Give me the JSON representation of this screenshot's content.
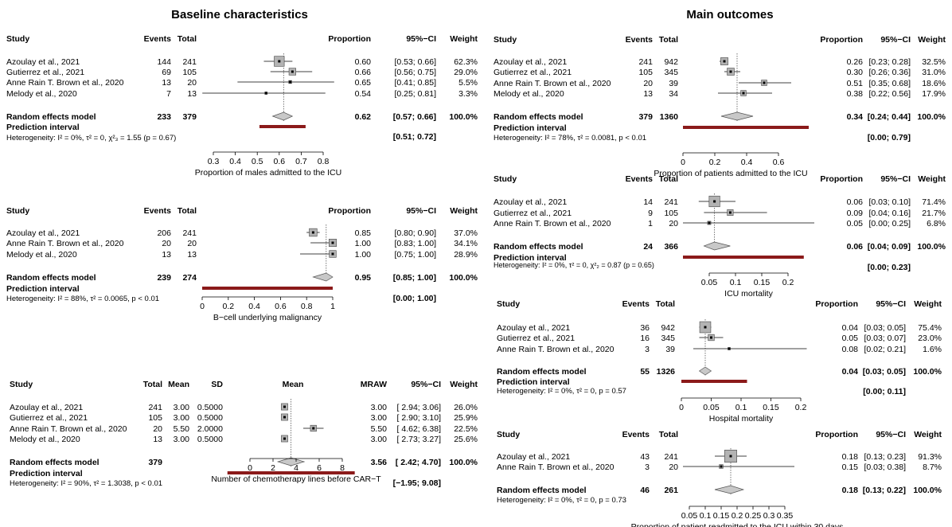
{
  "section_titles": {
    "left": "Baseline characteristics",
    "right": "Main outcomes"
  },
  "colors": {
    "prediction_bar": "#8b1a1a",
    "square_fill": "#b3b3b3",
    "diamond_fill": "#c8c8c8",
    "text": "#000000"
  },
  "chart_data": [
    {
      "type": "forest",
      "id": "males",
      "columns": [
        "Study",
        "Events",
        "Total",
        "Proportion",
        "95%−CI",
        "Weight"
      ],
      "studies": [
        {
          "study": "Azoulay et al., 2021",
          "events": "144",
          "total": "241",
          "est": 0.6,
          "lo": 0.53,
          "hi": 0.66,
          "est_text": "0.60",
          "ci_text": "[0.53; 0.66]",
          "weight": "62.3%",
          "w": 62.3
        },
        {
          "study": "Gutierrez et al., 2021",
          "events": "69",
          "total": "105",
          "est": 0.66,
          "lo": 0.56,
          "hi": 0.75,
          "est_text": "0.66",
          "ci_text": "[0.56; 0.75]",
          "weight": "29.0%",
          "w": 29.0
        },
        {
          "study": "Anne Rain T. Brown et al., 2020",
          "events": "13",
          "total": "20",
          "est": 0.65,
          "lo": 0.41,
          "hi": 0.85,
          "est_text": "0.65",
          "ci_text": "[0.41; 0.85]",
          "weight": "5.5%",
          "w": 5.5
        },
        {
          "study": "Melody et al., 2020",
          "events": "7",
          "total": "13",
          "est": 0.54,
          "lo": 0.25,
          "hi": 0.81,
          "est_text": "0.54",
          "ci_text": "[0.25; 0.81]",
          "weight": "3.3%",
          "w": 3.3
        }
      ],
      "random": {
        "label": "Random effects model",
        "events": "233",
        "total": "379",
        "est": 0.62,
        "lo": 0.57,
        "hi": 0.66,
        "est_text": "0.62",
        "ci_text": "[0.57; 0.66]",
        "weight": "100.0%"
      },
      "prediction": {
        "label": "Prediction interval",
        "lo": 0.51,
        "hi": 0.72,
        "ci_text": "[0.51; 0.72]"
      },
      "heterogeneity": "Heterogeneity: I² = 0%, τ² = 0, χ²₃ = 1.55 (p = 0.67)",
      "xlim": [
        0.3,
        0.8
      ],
      "ticks": [
        0.3,
        0.4,
        0.5,
        0.6,
        0.7,
        0.8
      ],
      "tick_labels": [
        "0.3",
        "0.4",
        "0.5",
        "0.6",
        "0.7",
        "0.8"
      ],
      "ref_line": 0.62,
      "xlabel": "Proportion of males admitted to the ICU"
    },
    {
      "type": "forest",
      "id": "bcell",
      "columns": [
        "Study",
        "Events",
        "Total",
        "Proportion",
        "95%−CI",
        "Weight"
      ],
      "studies": [
        {
          "study": "Azoulay et al., 2021",
          "events": "206",
          "total": "241",
          "est": 0.85,
          "lo": 0.8,
          "hi": 0.9,
          "est_text": "0.85",
          "ci_text": "[0.80; 0.90]",
          "weight": "37.0%",
          "w": 37.0
        },
        {
          "study": "Anne Rain T. Brown et al., 2020",
          "events": "20",
          "total": "20",
          "est": 1.0,
          "lo": 0.83,
          "hi": 1.0,
          "est_text": "1.00",
          "ci_text": "[0.83; 1.00]",
          "weight": "34.1%",
          "w": 34.1
        },
        {
          "study": "Melody et al., 2020",
          "events": "13",
          "total": "13",
          "est": 1.0,
          "lo": 0.75,
          "hi": 1.0,
          "est_text": "1.00",
          "ci_text": "[0.75; 1.00]",
          "weight": "28.9%",
          "w": 28.9
        }
      ],
      "random": {
        "label": "Random effects model",
        "events": "239",
        "total": "274",
        "est": 0.95,
        "lo": 0.85,
        "hi": 1.0,
        "est_text": "0.95",
        "ci_text": "[0.85; 1.00]",
        "weight": "100.0%"
      },
      "prediction": {
        "label": "Prediction interval",
        "lo": 0.0,
        "hi": 1.0,
        "ci_text": "[0.00; 1.00]"
      },
      "heterogeneity": "Heterogeneity: I² = 88%, τ² = 0.0065, p < 0.01",
      "xlim": [
        0,
        1
      ],
      "ticks": [
        0,
        0.2,
        0.4,
        0.6,
        0.8,
        1
      ],
      "tick_labels": [
        "0",
        "0.2",
        "0.4",
        "0.6",
        "0.8",
        "1"
      ],
      "ref_line": 0.95,
      "xlabel": "B−cell underlying malignancy"
    },
    {
      "type": "forest",
      "id": "chemo",
      "columns": [
        "Study",
        "Total",
        "Mean",
        "SD",
        "Mean",
        "MRAW",
        "95%−CI",
        "Weight"
      ],
      "studies": [
        {
          "study": "Azoulay et al., 2021",
          "total": "241",
          "mean": "3.00",
          "sd": "0.5000",
          "est": 3.0,
          "lo": 2.94,
          "hi": 3.06,
          "est_text": "3.00",
          "ci_text": "[ 2.94; 3.06]",
          "weight": "26.0%",
          "w": 26.0
        },
        {
          "study": "Gutierrez et al., 2021",
          "total": "105",
          "mean": "3.00",
          "sd": "0.5000",
          "est": 3.0,
          "lo": 2.9,
          "hi": 3.1,
          "est_text": "3.00",
          "ci_text": "[ 2.90; 3.10]",
          "weight": "25.9%",
          "w": 25.9
        },
        {
          "study": "Anne Rain T. Brown et al., 2020",
          "total": "20",
          "mean": "5.50",
          "sd": "2.0000",
          "est": 5.5,
          "lo": 4.62,
          "hi": 6.38,
          "est_text": "5.50",
          "ci_text": "[ 4.62; 6.38]",
          "weight": "22.5%",
          "w": 22.5
        },
        {
          "study": "Melody et al., 2020",
          "total": "13",
          "mean": "3.00",
          "sd": "0.5000",
          "est": 3.0,
          "lo": 2.73,
          "hi": 3.27,
          "est_text": "3.00",
          "ci_text": "[ 2.73; 3.27]",
          "weight": "25.6%",
          "w": 25.6
        }
      ],
      "random": {
        "label": "Random effects model",
        "total": "379",
        "est": 3.56,
        "lo": 2.42,
        "hi": 4.7,
        "est_text": "3.56",
        "ci_text": "[ 2.42; 4.70]",
        "weight": "100.0%"
      },
      "prediction": {
        "label": "Prediction interval",
        "lo": -1.95,
        "hi": 9.08,
        "ci_text": "[−1.95; 9.08]"
      },
      "heterogeneity": "Heterogeneity: I² = 90%, τ² = 1.3038, p < 0.01",
      "xlim": [
        0,
        8
      ],
      "ticks": [
        0,
        2,
        4,
        6,
        8
      ],
      "tick_labels": [
        "0",
        "2",
        "4",
        "6",
        "8"
      ],
      "ref_line": 3.56,
      "xlabel": "Number of chemotherapy lines before CAR−T"
    },
    {
      "type": "forest",
      "id": "icu_admit",
      "columns": [
        "Study",
        "Events",
        "Total",
        "Proportion",
        "95%−CI",
        "Weight"
      ],
      "studies": [
        {
          "study": "Azoulay et al., 2021",
          "events": "241",
          "total": "942",
          "est": 0.26,
          "lo": 0.23,
          "hi": 0.28,
          "est_text": "0.26",
          "ci_text": "[0.23; 0.28]",
          "weight": "32.5%",
          "w": 32.5
        },
        {
          "study": "Gutierrez et al., 2021",
          "events": "105",
          "total": "345",
          "est": 0.3,
          "lo": 0.26,
          "hi": 0.36,
          "est_text": "0.30",
          "ci_text": "[0.26; 0.36]",
          "weight": "31.0%",
          "w": 31.0
        },
        {
          "study": "Anne Rain T. Brown et al., 2020",
          "events": "20",
          "total": "39",
          "est": 0.51,
          "lo": 0.35,
          "hi": 0.68,
          "est_text": "0.51",
          "ci_text": "[0.35; 0.68]",
          "weight": "18.6%",
          "w": 18.6
        },
        {
          "study": "Melody et al., 2020",
          "events": "13",
          "total": "34",
          "est": 0.38,
          "lo": 0.22,
          "hi": 0.56,
          "est_text": "0.38",
          "ci_text": "[0.22; 0.56]",
          "weight": "17.9%",
          "w": 17.9
        }
      ],
      "random": {
        "label": "Random effects model",
        "events": "379",
        "total": "1360",
        "est": 0.34,
        "lo": 0.24,
        "hi": 0.44,
        "est_text": "0.34",
        "ci_text": "[0.24; 0.44]",
        "weight": "100.0%"
      },
      "prediction": {
        "label": "Prediction interval",
        "lo": 0.0,
        "hi": 0.79,
        "ci_text": "[0.00; 0.79]"
      },
      "heterogeneity": "Heterogeneity: I² = 78%, τ² = 0.0081, p < 0.01",
      "xlim": [
        0,
        0.6
      ],
      "ticks": [
        0,
        0.2,
        0.4,
        0.6
      ],
      "tick_labels": [
        "0",
        "0.2",
        "0.4",
        "0.6"
      ],
      "ref_line": 0.34,
      "xlabel": "Proportion of patients admitted to the ICU"
    },
    {
      "type": "forest",
      "id": "icu_mort",
      "columns": [
        "Study",
        "Events",
        "Total",
        "Proportion",
        "95%−CI",
        "Weight"
      ],
      "studies": [
        {
          "study": "Azoulay et al., 2021",
          "events": "14",
          "total": "241",
          "est": 0.06,
          "lo": 0.03,
          "hi": 0.1,
          "est_text": "0.06",
          "ci_text": "[0.03; 0.10]",
          "weight": "71.4%",
          "w": 71.4
        },
        {
          "study": "Gutierrez et al., 2021",
          "events": "9",
          "total": "105",
          "est": 0.09,
          "lo": 0.04,
          "hi": 0.16,
          "est_text": "0.09",
          "ci_text": "[0.04; 0.16]",
          "weight": "21.7%",
          "w": 21.7
        },
        {
          "study": "Anne Rain T. Brown et al., 2020",
          "events": "1",
          "total": "20",
          "est": 0.05,
          "lo": 0.0,
          "hi": 0.25,
          "est_text": "0.05",
          "ci_text": "[0.00; 0.25]",
          "weight": "6.8%",
          "w": 6.8
        }
      ],
      "random": {
        "label": "Random effects model",
        "events": "24",
        "total": "366",
        "est": 0.06,
        "lo": 0.04,
        "hi": 0.09,
        "est_text": "0.06",
        "ci_text": "[0.04; 0.09]",
        "weight": "100.0%"
      },
      "prediction": {
        "label": "Prediction interval",
        "lo": 0.0,
        "hi": 0.23,
        "ci_text": "[0.00; 0.23]"
      },
      "heterogeneity": "Heterogeneity: I² = 0%, τ² = 0, χ²₂ = 0.87 (p = 0.65)",
      "xlim": [
        0,
        0.2
      ],
      "ticks": [
        0.05,
        0.1,
        0.15,
        0.2
      ],
      "tick_labels": [
        "0.05",
        "0.1",
        "0.15",
        "0.2"
      ],
      "ref_line": 0.06,
      "xlabel": "ICU mortality"
    },
    {
      "type": "forest",
      "id": "hosp_mort",
      "columns": [
        "Study",
        "Events",
        "Total",
        "Proportion",
        "95%−CI",
        "Weight"
      ],
      "studies": [
        {
          "study": "Azoulay et al., 2021",
          "events": "36",
          "total": "942",
          "est": 0.04,
          "lo": 0.03,
          "hi": 0.05,
          "est_text": "0.04",
          "ci_text": "[0.03; 0.05]",
          "weight": "75.4%",
          "w": 75.4
        },
        {
          "study": "Gutierrez et al., 2021",
          "events": "16",
          "total": "345",
          "est": 0.05,
          "lo": 0.03,
          "hi": 0.07,
          "est_text": "0.05",
          "ci_text": "[0.03; 0.07]",
          "weight": "23.0%",
          "w": 23.0
        },
        {
          "study": "Anne Rain T. Brown et al., 2020",
          "events": "3",
          "total": "39",
          "est": 0.08,
          "lo": 0.02,
          "hi": 0.21,
          "est_text": "0.08",
          "ci_text": "[0.02; 0.21]",
          "weight": "1.6%",
          "w": 1.6
        }
      ],
      "random": {
        "label": "Random effects model",
        "events": "55",
        "total": "1326",
        "est": 0.04,
        "lo": 0.03,
        "hi": 0.05,
        "est_text": "0.04",
        "ci_text": "[0.03; 0.05]",
        "weight": "100.0%"
      },
      "prediction": {
        "label": "Prediction interval",
        "lo": 0.0,
        "hi": 0.11,
        "ci_text": "[0.00; 0.11]"
      },
      "heterogeneity": "Heterogeneity: I² = 0%, τ² = 0, p = 0.57",
      "xlim": [
        0,
        0.2
      ],
      "ticks": [
        0,
        0.05,
        0.1,
        0.15,
        0.2
      ],
      "tick_labels": [
        "0",
        "0.05",
        "0.1",
        "0.15",
        "0.2"
      ],
      "ref_line": 0.04,
      "xlabel": "Hospital mortality"
    },
    {
      "type": "forest",
      "id": "readmit",
      "columns": [
        "Study",
        "Events",
        "Total",
        "Proportion",
        "95%−CI",
        "Weight"
      ],
      "studies": [
        {
          "study": "Azoulay et al., 2021",
          "events": "43",
          "total": "241",
          "est": 0.18,
          "lo": 0.13,
          "hi": 0.23,
          "est_text": "0.18",
          "ci_text": "[0.13; 0.23]",
          "weight": "91.3%",
          "w": 91.3
        },
        {
          "study": "Anne Rain T. Brown et al., 2020",
          "events": "3",
          "total": "20",
          "est": 0.15,
          "lo": 0.03,
          "hi": 0.38,
          "est_text": "0.15",
          "ci_text": "[0.03; 0.38]",
          "weight": "8.7%",
          "w": 8.7
        }
      ],
      "random": {
        "label": "Random effects model",
        "events": "46",
        "total": "261",
        "est": 0.18,
        "lo": 0.13,
        "hi": 0.22,
        "est_text": "0.18",
        "ci_text": "[0.13; 0.22]",
        "weight": "100.0%"
      },
      "prediction": null,
      "heterogeneity": "Heterogeneity: I² = 0%, τ² = 0, p = 0.73",
      "xlim": [
        0.05,
        0.35
      ],
      "ticks": [
        0.05,
        0.1,
        0.15,
        0.2,
        0.25,
        0.3,
        0.35
      ],
      "tick_labels": [
        "0.05",
        "0.1",
        "0.15",
        "0.2",
        "0.25",
        "0.3",
        "0.35"
      ],
      "ref_line": 0.18,
      "xlabel": "Proportion of patient readmitted to the ICU within 30 days"
    }
  ]
}
